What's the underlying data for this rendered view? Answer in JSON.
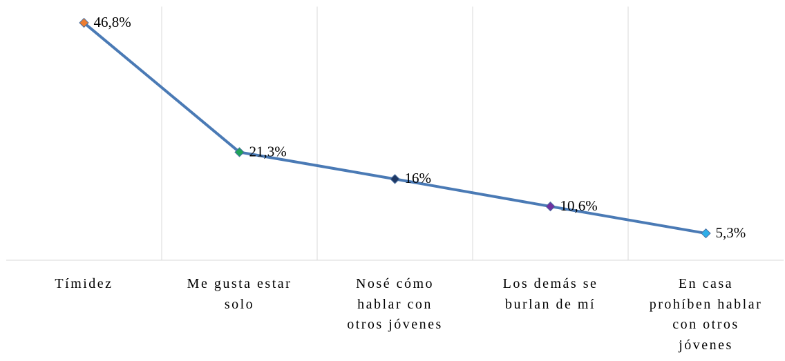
{
  "chart_data": {
    "type": "line",
    "categories": [
      "Tímidez",
      "Me gusta estar\nsolo",
      "Nosé cómo\nhablar con\notros jóvenes",
      "Los demás se\nburlan de mí",
      "En casa\nprohíben hablar\ncon otros\njóvenes"
    ],
    "series": [
      {
        "color": "#4a7ab5",
        "point_colors": [
          "#ed7d31",
          "#1fa35a",
          "#1f3864",
          "#7030a0",
          "#2eaee8"
        ],
        "values": [
          46.8,
          21.3,
          16,
          10.6,
          5.3
        ],
        "value_labels": [
          "46,8%",
          "21,3%",
          "16%",
          "10,6%",
          "5,3%"
        ]
      }
    ],
    "ylim": [
      0,
      50
    ],
    "grid": true
  }
}
